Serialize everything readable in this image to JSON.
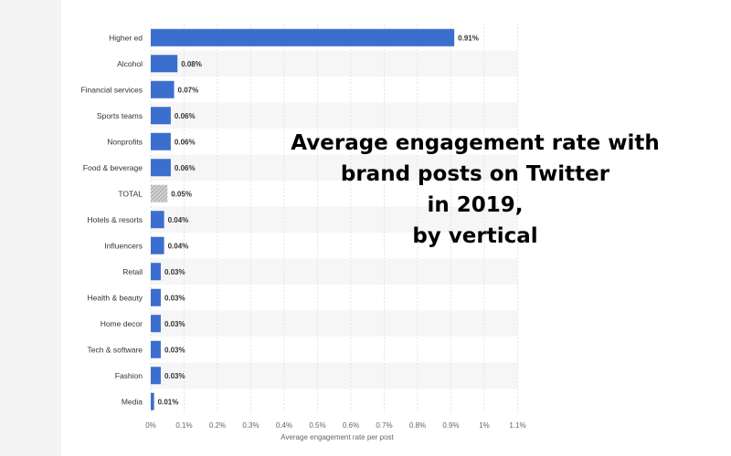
{
  "overlay_title": {
    "lines": [
      "Average engagement rate with",
      "brand posts on Twitter",
      "in 2019,",
      "by vertical"
    ]
  },
  "chart_data": {
    "type": "bar",
    "orientation": "horizontal",
    "categories": [
      "Higher ed",
      "Alcohol",
      "Financial services",
      "Sports teams",
      "Nonprofits",
      "Food & beverage",
      "TOTAL",
      "Hotels & resorts",
      "Influencers",
      "Retail",
      "Health & beauty",
      "Home decor",
      "Tech & software",
      "Fashion",
      "Media"
    ],
    "values": [
      0.91,
      0.08,
      0.07,
      0.06,
      0.06,
      0.06,
      0.05,
      0.04,
      0.04,
      0.03,
      0.03,
      0.03,
      0.03,
      0.03,
      0.01
    ],
    "data_labels": [
      "0.91%",
      "0.08%",
      "0.07%",
      "0.06%",
      "0.06%",
      "0.06%",
      "0.05%",
      "0.04%",
      "0.04%",
      "0.03%",
      "0.03%",
      "0.03%",
      "0.03%",
      "0.03%",
      "0.01%"
    ],
    "highlight_category": "TOTAL",
    "xlabel": "Average engagement rate per post",
    "xlim": [
      0,
      1.1
    ],
    "xticks": [
      0,
      0.1,
      0.2,
      0.3,
      0.4,
      0.5,
      0.6,
      0.7,
      0.8,
      0.9,
      1.0,
      1.1
    ],
    "xtick_labels": [
      "0%",
      "0.1%",
      "0.2%",
      "0.3%",
      "0.4%",
      "0.5%",
      "0.6%",
      "0.7%",
      "0.8%",
      "0.9%",
      "1%",
      "1.1%"
    ],
    "grid": true,
    "colors": {
      "bar": "#3c6ecd",
      "highlight_bar": "#b0b0b0",
      "label_text": "#333333",
      "axis_text": "#666666",
      "grid": "#e3e3e3",
      "band": "#f6f6f6"
    }
  }
}
